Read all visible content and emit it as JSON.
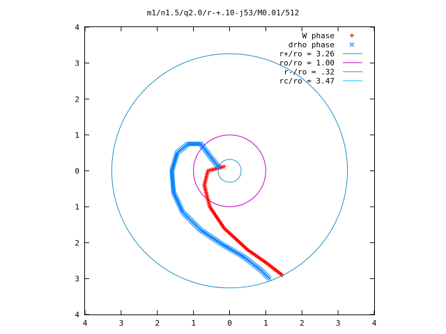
{
  "chart_data": {
    "type": "scatter",
    "title": "m1/n1.5/q2.0/r-+.10-j53/M0.01/512",
    "xlim": [
      -4,
      4
    ],
    "ylim": [
      -4,
      4
    ],
    "x_ticks": [
      -4,
      -3,
      -2,
      -1,
      0,
      1,
      2,
      3,
      4
    ],
    "x_tick_labels": [
      "4",
      "3",
      "2",
      "1",
      "0",
      "1",
      "2",
      "3",
      "4"
    ],
    "y_ticks": [
      4,
      3,
      2,
      1,
      0,
      -1,
      -2,
      -3,
      -4
    ],
    "y_tick_labels": [
      "4",
      "3",
      "2",
      "1",
      "0",
      "1",
      "2",
      "3",
      "4"
    ],
    "grid": false,
    "legend_position": "top-right",
    "legend": [
      {
        "label": "W phase",
        "kind": "marker",
        "marker": "+",
        "color": "#ff0000"
      },
      {
        "label": "drho phase",
        "kind": "marker",
        "marker": "x",
        "color": "#0080ff"
      },
      {
        "label": "r+/ro = 3.26",
        "kind": "line",
        "color": "#1f8fc0"
      },
      {
        "label": "ro/ro = 1.00",
        "kind": "line",
        "color": "#c000c0"
      },
      {
        "label": "r-/ro = .32",
        "kind": "line",
        "color": "#1f8fc0"
      },
      {
        "label": "rc/ro = 3.47",
        "kind": "line",
        "color": "#00c0ff"
      }
    ],
    "circles": [
      {
        "name": "r+/ro",
        "radius": 3.26,
        "color": "#1f8fc0"
      },
      {
        "name": "ro/ro",
        "radius": 1.0,
        "color": "#c000c0"
      },
      {
        "name": "r-/ro",
        "radius": 0.32,
        "color": "#1f8fc0"
      }
    ],
    "series": [
      {
        "name": "W phase",
        "marker": "+",
        "color": "#ff0000",
        "path": [
          [
            -0.15,
            0.12
          ],
          [
            -0.6,
            0.0
          ],
          [
            -0.7,
            -0.4
          ],
          [
            -0.55,
            -1.0
          ],
          [
            -0.15,
            -1.6
          ],
          [
            0.5,
            -2.2
          ],
          [
            1.0,
            -2.55
          ],
          [
            1.45,
            -2.9
          ]
        ]
      },
      {
        "name": "drho phase",
        "marker": "x",
        "color": "#0080ff",
        "path": [
          [
            -0.3,
            0.1
          ],
          [
            -0.5,
            0.35
          ],
          [
            -0.8,
            0.75
          ],
          [
            -1.15,
            0.75
          ],
          [
            -1.45,
            0.5
          ],
          [
            -1.6,
            0.0
          ],
          [
            -1.55,
            -0.6
          ],
          [
            -1.3,
            -1.15
          ],
          [
            -0.8,
            -1.65
          ],
          [
            -0.2,
            -2.05
          ],
          [
            0.4,
            -2.4
          ],
          [
            0.85,
            -2.75
          ],
          [
            1.1,
            -3.0
          ]
        ]
      }
    ]
  }
}
